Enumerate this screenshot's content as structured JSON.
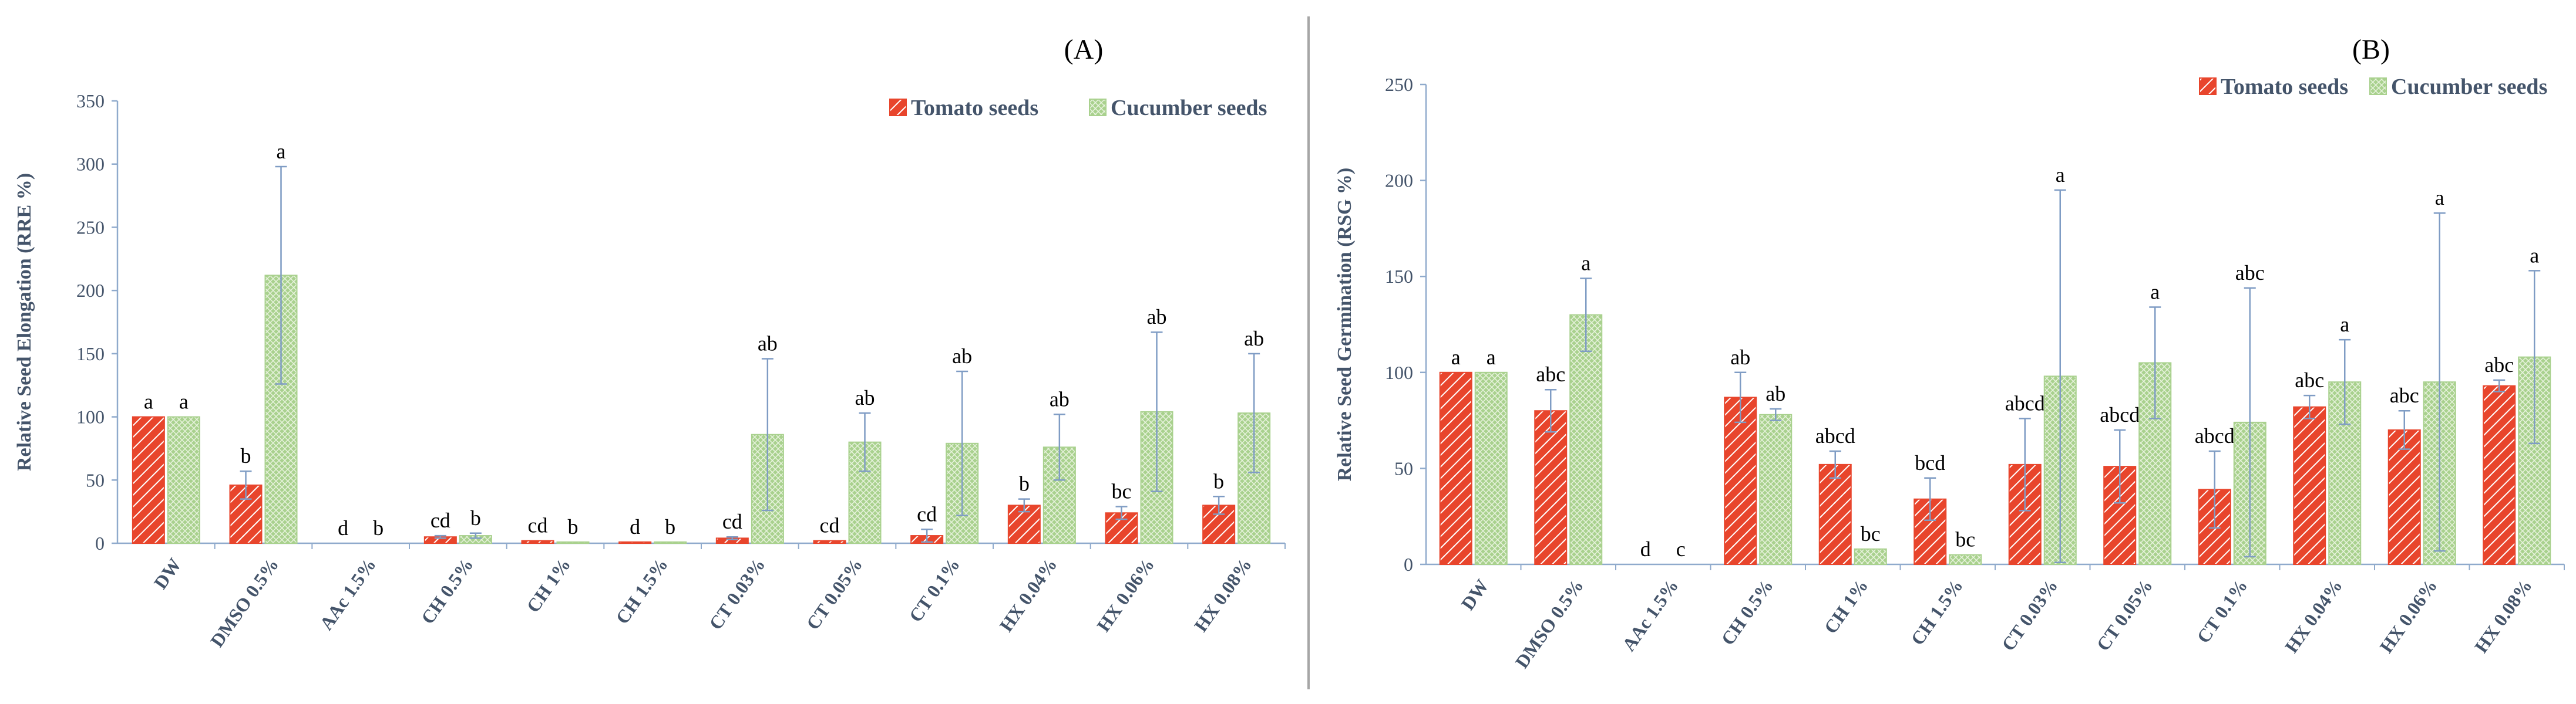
{
  "colors": {
    "tomato": "#E8452C",
    "tomato_hatch": "#FFFFFF",
    "cucumber": "#A9D18E",
    "cucumber_hatch": "#E8F3DE",
    "axis": "#8FAACC",
    "error": "#7F9CC4",
    "divider": "#A6A6A6",
    "text": "#44546A"
  },
  "chart_data": [
    {
      "type": "bar",
      "panel_label": "(A)",
      "ylabel": "Relative Seed Elongation (RRE %)",
      "xlabel": "",
      "ylim": [
        0,
        350
      ],
      "yticks": [
        "0",
        "50",
        "100",
        "150",
        "200",
        "250",
        "300",
        "350"
      ],
      "legend": [
        "Tomato seeds",
        "Cucumber seeds"
      ],
      "legend_position": "top-right",
      "categories": [
        "DW",
        "DMSO 0.5%",
        "AAc 1.5%",
        "CH 0.5%",
        "CH 1%",
        "CH 1.5%",
        "CT 0.03%",
        "CT 0.05%",
        "CT 0.1%",
        "HX 0.04%",
        "HX 0.06%",
        "HX 0.08%"
      ],
      "series": [
        {
          "name": "Tomato seeds",
          "values": [
            100,
            46,
            0,
            5,
            2,
            1,
            4,
            2,
            6,
            30,
            24,
            30
          ],
          "errors": [
            0,
            11,
            0,
            1,
            0,
            0,
            1,
            0,
            5,
            5,
            5,
            7
          ],
          "letters": [
            "a",
            "b",
            "d",
            "cd",
            "cd",
            "d",
            "cd",
            "cd",
            "cd",
            "b",
            "bc",
            "b"
          ]
        },
        {
          "name": "Cucumber seeds",
          "values": [
            100,
            212,
            0,
            6,
            1,
            1,
            86,
            80,
            79,
            76,
            104,
            103
          ],
          "errors": [
            0,
            86,
            0,
            2,
            0,
            0,
            60,
            23,
            57,
            26,
            63,
            47
          ],
          "letters": [
            "a",
            "a",
            "b",
            "b",
            "b",
            "b",
            "ab",
            "ab",
            "ab",
            "ab",
            "ab",
            "ab"
          ]
        }
      ]
    },
    {
      "type": "bar",
      "panel_label": "(B)",
      "ylabel": "Relative Seed Germination (RSG %)",
      "xlabel": "",
      "ylim": [
        0,
        250
      ],
      "yticks": [
        "0",
        "50",
        "100",
        "150",
        "200",
        "250"
      ],
      "legend": [
        "Tomato seeds",
        "Cucumber seeds"
      ],
      "legend_position": "top-right",
      "categories": [
        "DW",
        "DMSO 0.5%",
        "AAc 1.5%",
        "CH 0.5%",
        "CH 1%",
        "CH 1.5%",
        "CT 0.03%",
        "CT 0.05%",
        "CT 0.1%",
        "HX 0.04%",
        "HX 0.06%",
        "HX 0.08%"
      ],
      "series": [
        {
          "name": "Tomato seeds",
          "values": [
            100,
            80,
            0,
            87,
            52,
            34,
            52,
            51,
            39,
            82,
            70,
            93
          ],
          "errors": [
            0,
            11,
            0,
            13,
            7,
            11,
            24,
            19,
            20,
            6,
            10,
            3
          ],
          "letters": [
            "a",
            "abc",
            "d",
            "ab",
            "abcd",
            "bcd",
            "abcd",
            "abcd",
            "abcd",
            "abc",
            "abc",
            "abc"
          ]
        },
        {
          "name": "Cucumber seeds",
          "values": [
            100,
            130,
            0,
            78,
            8,
            5,
            98,
            105,
            74,
            95,
            95,
            108
          ],
          "errors": [
            0,
            19,
            0,
            3,
            0,
            0,
            97,
            29,
            70,
            22,
            88,
            45
          ],
          "letters": [
            "a",
            "a",
            "c",
            "ab",
            "bc",
            "bc",
            "a",
            "a",
            "abc",
            "a",
            "a",
            "a"
          ]
        }
      ]
    }
  ]
}
